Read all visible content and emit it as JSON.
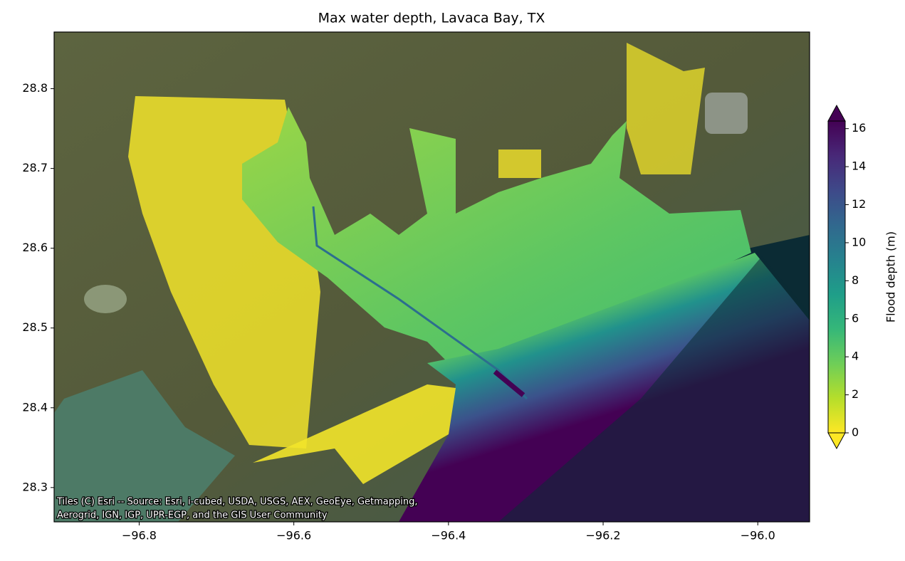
{
  "chart_data": {
    "type": "map",
    "title": "Max water depth, Lavaca Bay, TX",
    "xlim": [
      -96.91,
      -95.933
    ],
    "xticks": [
      {
        "value": -96.8,
        "label": "−96.8"
      },
      {
        "value": -96.6,
        "label": "−96.6"
      },
      {
        "value": -96.4,
        "label": "−96.4"
      },
      {
        "value": -96.2,
        "label": "−96.2"
      },
      {
        "value": -96.0,
        "label": "−96.0"
      }
    ],
    "ylim": [
      28.257,
      28.871
    ],
    "yticks": [
      28.3,
      28.4,
      28.5,
      28.6,
      28.7,
      28.8
    ],
    "colorbar": {
      "label": "Flood depth (m)",
      "colormap": "viridis_r",
      "lim": [
        0,
        16.4
      ],
      "ticks": [
        0,
        2,
        4,
        6,
        8,
        10,
        12,
        14,
        16
      ],
      "extend": "both"
    },
    "attribution": [
      "Tiles (C) Esri -- Source: Esri, i-cubed, USDA, USGS, AEX, GeoEye, Getmapping,",
      "Aerogrid, IGN, IGP, UPR-EGP, and the GIS User Community"
    ]
  }
}
